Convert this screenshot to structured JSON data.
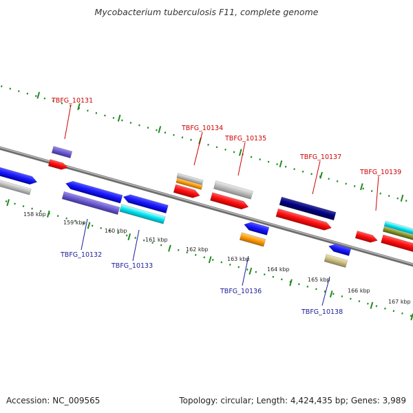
{
  "title": "Mycobacterium tuberculosis F11, complete genome",
  "footer": {
    "accession": "Accession: NC_009565",
    "stats": "Topology: circular; Length: 4,424,435 bp; Genes: 3,989"
  },
  "colors": {
    "backbone": "#8c8c8c",
    "tick": "#1f8a1f",
    "top_label": "#cc0000",
    "bottom_label": "#1a1a99"
  },
  "ticks": [
    "158 kbp",
    "159 kbp",
    "160 kbp",
    "161 kbp",
    "162 kbp",
    "163 kbp",
    "164 kbp",
    "165 kbp",
    "166 kbp",
    "167 kbp"
  ],
  "gene_labels_top": [
    "TBFG_10131",
    "TBFG_10134",
    "TBFG_10135",
    "TBFG_10137",
    "TBFG_10139"
  ],
  "gene_labels_bottom": [
    "TBFG_10132",
    "TBFG_10133",
    "TBFG_10136",
    "TBFG_10138"
  ]
}
